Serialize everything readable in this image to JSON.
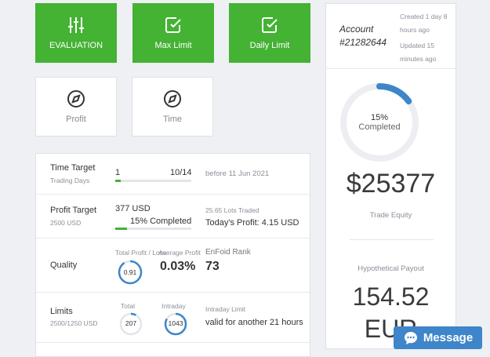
{
  "tiles": [
    {
      "label": "EVALUATION",
      "icon": "sliders-icon"
    },
    {
      "label": "Max Limit",
      "icon": "checkbox-icon"
    },
    {
      "label": "Daily Limit",
      "icon": "checkbox-icon"
    },
    {
      "label": "Profit",
      "icon": "compass-icon"
    },
    {
      "label": "Time",
      "icon": "compass-icon"
    }
  ],
  "time_target": {
    "title": "Time Target",
    "subtitle": "Trading Days",
    "current": "1",
    "total": "10/14",
    "progress": 0.071,
    "deadline": "before 11 Jun 2021"
  },
  "profit_target": {
    "title": "Profit Target",
    "subtitle": "2500 USD",
    "amount": "377 USD",
    "completed": "15% Completed",
    "progress": 0.15,
    "lots": "25.65 Lots Traded",
    "today": "Today's Profit: 4.15 USD"
  },
  "quality": {
    "title": "Quality",
    "label_total_profit": "Total Profit / Loss",
    "label_avg": "Average Profit",
    "label_rank": "EnFoid Rank",
    "ratio": "0.91",
    "ratio_progress": 0.91,
    "avg_value": "0.03%",
    "rank": "73"
  },
  "limits": {
    "title": "Limits",
    "subtitle": "2500/1250 USD",
    "total_label": "Total",
    "total_value": "207",
    "total_progress": 0.08,
    "intraday_label": "Intraday",
    "intraday_value": "1043",
    "intraday_progress": 0.83,
    "intraday_title": "Intraday Limit",
    "intraday_text": "valid for another 21 hours"
  },
  "account": {
    "label": "Account",
    "number": "#21282644",
    "created": "Created 1 day 8 hours ago",
    "updated": "Updated 15 minutes ago",
    "completed_pct": "15%",
    "completed_label": "Completed",
    "progress": 0.15,
    "equity": "$25377",
    "equity_label": "Trade Equity",
    "payout_label": "Hypothetical Payout",
    "payout": "154.52",
    "payout_currency": "EUR"
  },
  "chat": {
    "label": "Message",
    "icon": "chat-bubble-icon"
  },
  "colors": {
    "green": "#44b233",
    "blue": "#3e86c9"
  }
}
